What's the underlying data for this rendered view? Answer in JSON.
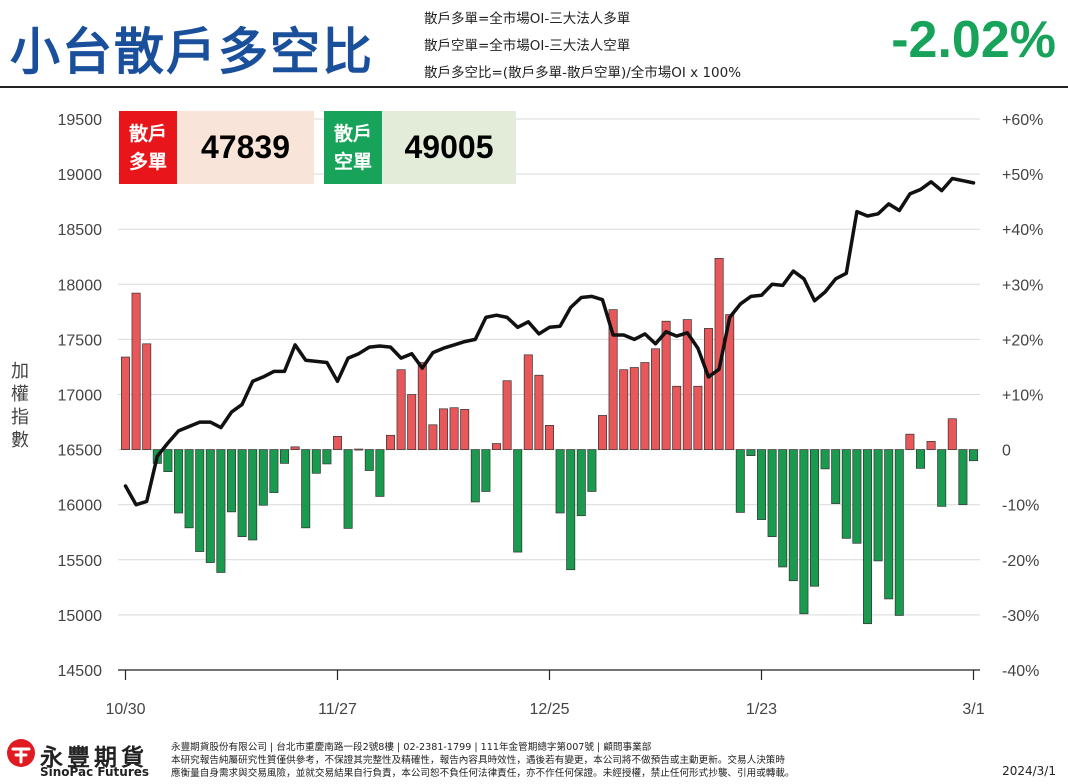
{
  "header": {
    "title": "小台散戶多空比",
    "definitions": [
      "散戶多單=全市場OI-三大法人多單",
      "散戶空單=全市場OI-三大法人空單",
      "散戶多空比=(散戶多單-散戶空單)/全市場OI x 100%"
    ],
    "ratio": "-2.02%"
  },
  "boxes": {
    "long": {
      "tag_line1": "散戶",
      "tag_line2": "多單",
      "value": "47839"
    },
    "short": {
      "tag_line1": "散戶",
      "tag_line2": "空單",
      "value": "49005"
    }
  },
  "colors": {
    "title": "#1a4f9c",
    "ratio": "#18a35a",
    "bar_positive": "#e8585a",
    "bar_negative": "#1a9a4e",
    "line": "#111111",
    "long_tag": "#e8161b",
    "long_bg": "#f9e4d9",
    "short_tag": "#18a35a",
    "short_bg": "#e3ecd9"
  },
  "chart_data": {
    "type": "bar",
    "left_axis": {
      "label": "加權指數",
      "min": 14500,
      "max": 19500,
      "ticks": [
        19500,
        19000,
        18500,
        18000,
        17500,
        17000,
        16500,
        16000,
        15500,
        15000,
        14500
      ]
    },
    "right_axis": {
      "min": -40,
      "max": 60,
      "ticks": [
        "+60%",
        "+50%",
        "+40%",
        "+30%",
        "+20%",
        "+10%",
        "0",
        "-10%",
        "-20%",
        "-30%",
        "-40%"
      ]
    },
    "x_ticks": [
      {
        "index": 0,
        "label": "10/30"
      },
      {
        "index": 20,
        "label": "11/27"
      },
      {
        "index": 40,
        "label": "12/25"
      },
      {
        "index": 60,
        "label": "1/23"
      },
      {
        "index": 80,
        "label": "3/1"
      }
    ],
    "series": [
      {
        "name": "散戶多空比",
        "type": "bar",
        "unit": "%",
        "values": [
          16.8,
          28.4,
          19.2,
          -2.5,
          -4,
          -11.5,
          -14.2,
          -18.5,
          -20.5,
          -22.3,
          -11.3,
          -15.8,
          -16.4,
          -10.1,
          -7.8,
          -2.5,
          0.5,
          -14.2,
          -4.3,
          -2.6,
          2.4,
          -14.3,
          0.1,
          -3.8,
          -8.5,
          2.6,
          14.5,
          10,
          15.8,
          4.5,
          7.4,
          7.6,
          7.3,
          -9.5,
          -7.6,
          1.1,
          12.5,
          -18.6,
          17.2,
          13.5,
          4.4,
          -11.5,
          -21.8,
          -12,
          -7.6,
          6.2,
          25.4,
          14.5,
          14.9,
          15.8,
          18.3,
          23.3,
          11.5,
          23.6,
          11.5,
          22,
          34.7,
          24.5,
          -11.4,
          -1.1,
          -12.7,
          -15.8,
          -21.3,
          -23.8,
          -29.8,
          -24.8,
          -3.5,
          -9.8,
          -16.1,
          -17,
          -31.6,
          -20.2,
          -27.1,
          -30.1,
          2.8,
          -3.4,
          1.5,
          -10.3,
          5.6,
          -10,
          -2.02
        ]
      },
      {
        "name": "加權指數",
        "type": "line",
        "values": [
          16170,
          16000,
          16030,
          16440,
          16560,
          16670,
          16710,
          16750,
          16750,
          16700,
          16840,
          16910,
          17120,
          17160,
          17210,
          17210,
          17450,
          17310,
          17300,
          17290,
          17120,
          17330,
          17370,
          17430,
          17440,
          17430,
          17330,
          17370,
          17240,
          17380,
          17420,
          17450,
          17480,
          17500,
          17700,
          17720,
          17700,
          17610,
          17660,
          17550,
          17610,
          17620,
          17790,
          17880,
          17890,
          17860,
          17540,
          17540,
          17500,
          17550,
          17460,
          17570,
          17530,
          17560,
          17420,
          17160,
          17230,
          17700,
          17820,
          17890,
          17900,
          18000,
          17990,
          18120,
          18050,
          17850,
          17930,
          18050,
          18100,
          18660,
          18620,
          18640,
          18730,
          18670,
          18820,
          18860,
          18930,
          18850,
          18960,
          18940,
          18920
        ]
      }
    ],
    "legend": "none",
    "grid": "horizontal"
  },
  "footer": {
    "logo_zh": "永豐期貨",
    "logo_en": "SinoPac Futures",
    "disclaimer": [
      "永豐期貨股份有限公司 | 台北市重慶南路一段2號8樓 | 02-2381-1799 | 111年金管期總字第007號 | 顧問事業部",
      "本研究報告純屬研究性質僅供參考，不保證其完整性及精確性，報告內容具時效性，遇後若有變更，本公司將不做預告或主動更新。交易人決策時",
      "應衡量自身需求與交易風險，並就交易結果自行負責，本公司恕不負任何法律責任，亦不作任何保證。未經授權，禁止任何形式抄襲、引用或轉載。"
    ],
    "date": "2024/3/1"
  }
}
